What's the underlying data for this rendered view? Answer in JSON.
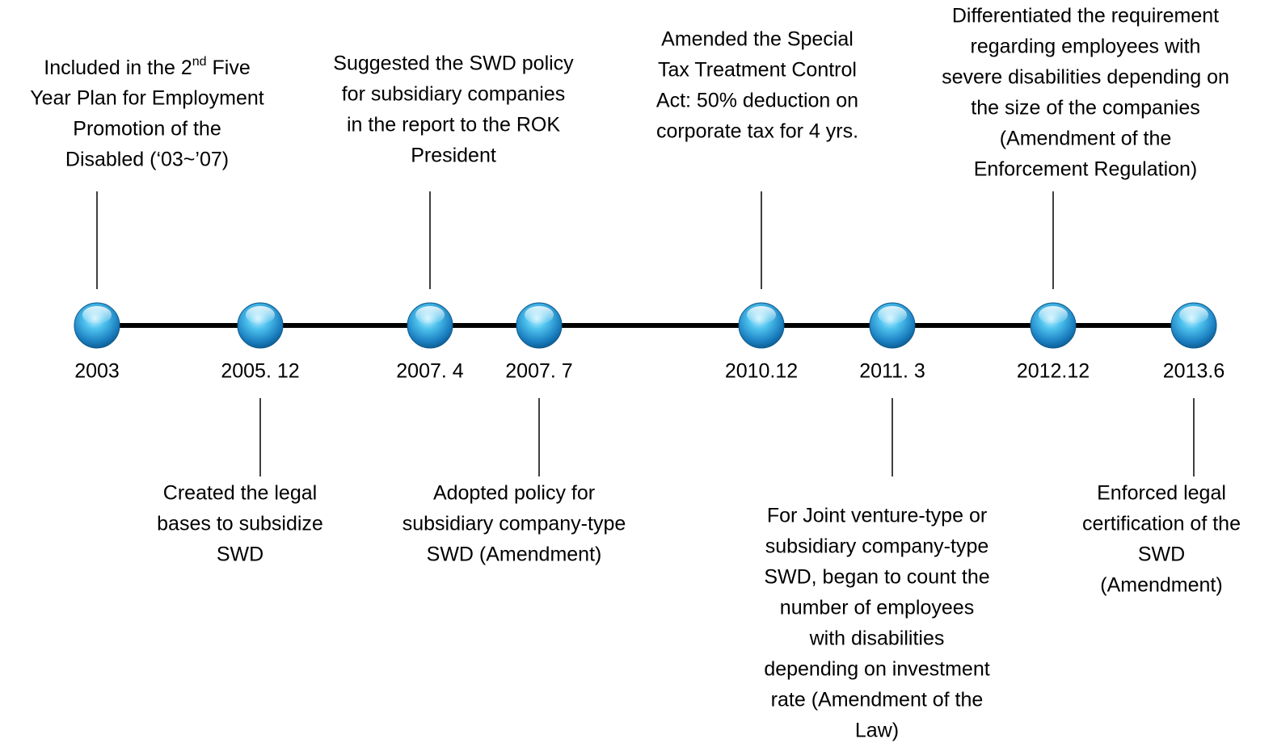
{
  "events": [
    {
      "date": "2003",
      "position": "above",
      "lines": [
        {
          "text": "Included in the 2",
          "sup": "nd",
          "rest": " Five"
        },
        "Year Plan for Employment",
        "Promotion of the",
        "Disabled (‘03~’07)"
      ]
    },
    {
      "date": "2005. 12",
      "position": "below",
      "lines": [
        "Created the legal",
        "bases to subsidize",
        "SWD"
      ]
    },
    {
      "date": "2007. 4",
      "position": "above",
      "lines": [
        "Suggested the SWD policy",
        "for subsidiary companies",
        "in the report to the ROK",
        "President"
      ]
    },
    {
      "date": "2007. 7",
      "position": "below",
      "lines": [
        "Adopted policy for",
        "subsidiary company-type",
        "SWD (Amendment)"
      ]
    },
    {
      "date": "2010.12",
      "position": "above",
      "lines": [
        "Amended the Special",
        "Tax Treatment Control",
        "Act: 50% deduction on",
        "corporate tax for 4 yrs."
      ]
    },
    {
      "date": "2011. 3",
      "position": "below",
      "lines": [
        "For Joint venture-type or",
        "subsidiary company-type",
        "SWD, began to count the",
        "number of employees",
        "with disabilities",
        "depending on investment",
        "rate (Amendment of the",
        "Law)"
      ]
    },
    {
      "date": "2012.12",
      "position": "above",
      "lines": [
        "Differentiated the requirement",
        "regarding employees with",
        "severe disabilities depending on",
        "the size of the companies",
        "(Amendment of the",
        "Enforcement Regulation)"
      ]
    },
    {
      "date": "2013.6",
      "position": "below",
      "lines": [
        "Enforced legal",
        "certification of the",
        "SWD",
        "(Amendment)"
      ]
    }
  ]
}
